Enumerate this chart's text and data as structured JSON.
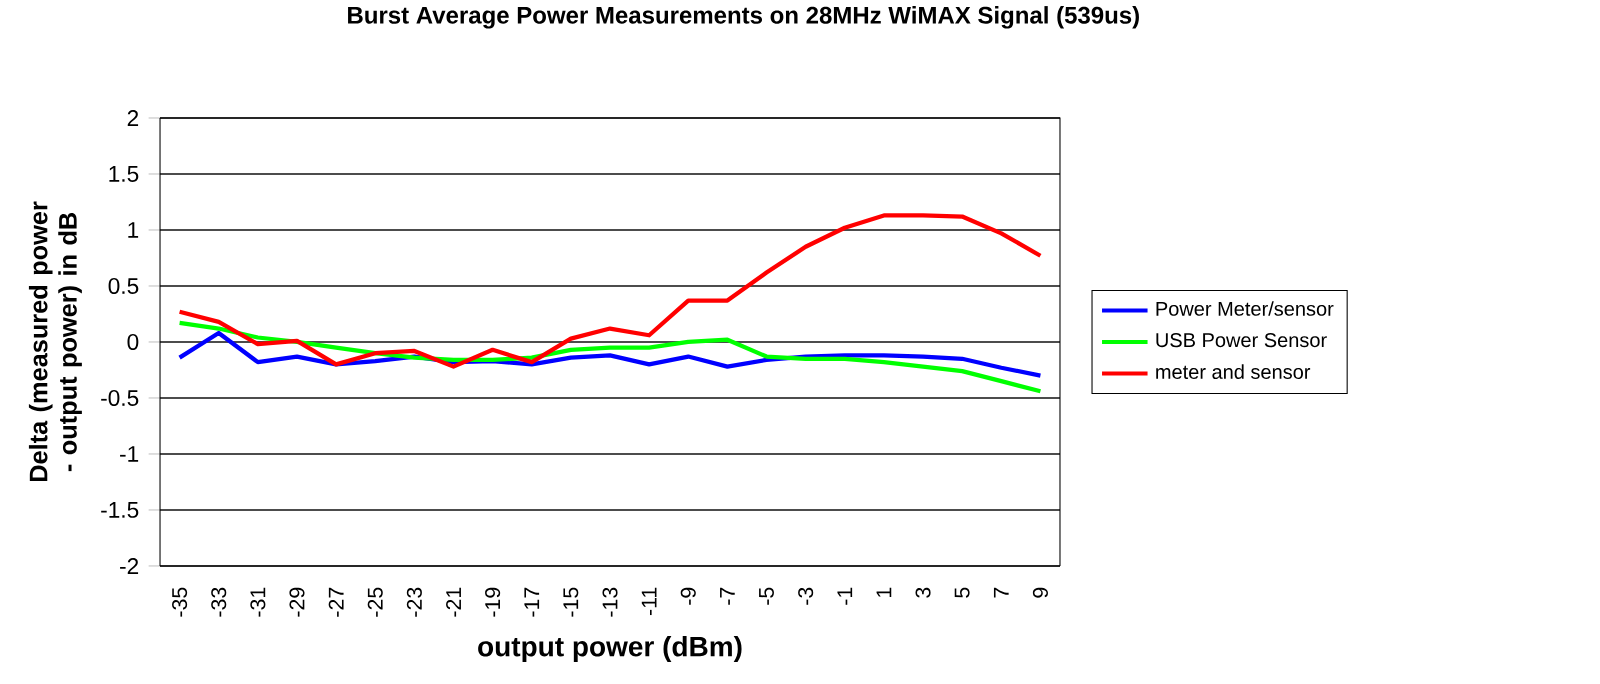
{
  "chart_data": {
    "type": "line",
    "title": "Burst Average Power Measurements on 28MHz WiMAX Signal (539us)",
    "xlabel": "output power (dBm)",
    "ylabel": "Delta (measured power - output power) in dB",
    "categories": [
      "-35",
      "-33",
      "-31",
      "-29",
      "-27",
      "-25",
      "-23",
      "-21",
      "-19",
      "-17",
      "-15",
      "-13",
      "-11",
      "-9",
      "-7",
      "-5",
      "-3",
      "-1",
      "1",
      "3",
      "5",
      "7",
      "9"
    ],
    "series": [
      {
        "name": "Power Meter/sensor",
        "color": "#0000ff",
        "values": [
          -0.14,
          0.08,
          -0.18,
          -0.13,
          -0.2,
          -0.17,
          -0.13,
          -0.18,
          -0.17,
          -0.2,
          -0.14,
          -0.12,
          -0.2,
          -0.13,
          -0.22,
          -0.16,
          -0.13,
          -0.12,
          -0.12,
          -0.13,
          -0.15,
          -0.23,
          -0.3
        ]
      },
      {
        "name": "USB Power Sensor",
        "color": "#00ff00",
        "values": [
          0.17,
          0.12,
          0.04,
          0.0,
          -0.05,
          -0.1,
          -0.14,
          -0.16,
          -0.16,
          -0.14,
          -0.07,
          -0.05,
          -0.05,
          0.0,
          0.02,
          -0.13,
          -0.15,
          -0.15,
          -0.18,
          -0.22,
          -0.26,
          -0.35,
          -0.44
        ]
      },
      {
        "name": "meter and sensor",
        "color": "#ff0000",
        "values": [
          0.27,
          0.18,
          -0.02,
          0.01,
          -0.2,
          -0.1,
          -0.08,
          -0.22,
          -0.07,
          -0.18,
          0.03,
          0.12,
          0.06,
          0.37,
          0.37,
          0.62,
          0.85,
          1.02,
          1.13,
          1.13,
          1.12,
          0.97,
          0.77
        ]
      }
    ],
    "ylim": [
      -2,
      2
    ],
    "yticks": [
      -2,
      -1.5,
      -1,
      -0.5,
      0,
      0.5,
      1,
      1.5,
      2
    ],
    "grid": "y",
    "legend": "right",
    "marker": "none",
    "line_style": "solid"
  }
}
